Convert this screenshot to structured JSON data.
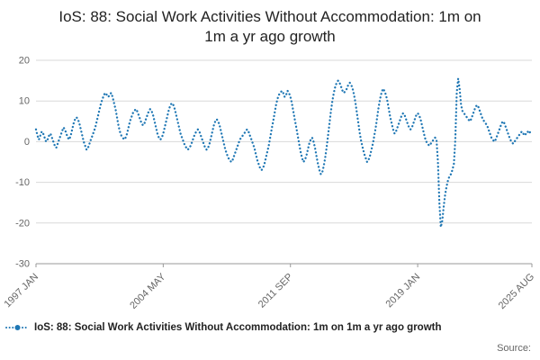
{
  "title": "IoS: 88: Social Work Activities Without Accommodation: 1m on 1m a yr ago growth",
  "legend": {
    "label": "IoS: 88: Social Work Activities Without Accommodation: 1m on 1m a yr ago growth"
  },
  "source_label": "Source:",
  "colors": {
    "series": "#1f77b4",
    "grid": "#d9d9d9",
    "axis": "#999999",
    "tick_text": "#666666",
    "title_text": "#222222"
  },
  "chart_data": {
    "type": "line",
    "line_style": "dotted",
    "title": "IoS: 88: Social Work Activities Without Accommodation: 1m on 1m a yr ago growth",
    "xlabel": "",
    "ylabel": "",
    "ylim": [
      -30,
      20
    ],
    "yticks": [
      20,
      10,
      0,
      -10,
      -20,
      -30
    ],
    "grid": true,
    "legend_position": "bottom-left",
    "x_start": "1997 JAN",
    "x_end": "2025 AUG",
    "x_frequency": "monthly",
    "xticks": [
      {
        "i": 0,
        "label": "1997 JAN"
      },
      {
        "i": 88,
        "label": "2004 MAY"
      },
      {
        "i": 176,
        "label": "2011 SEP"
      },
      {
        "i": 264,
        "label": "2019 JAN"
      },
      {
        "i": 343,
        "label": "2025 AUG"
      }
    ],
    "series": [
      {
        "name": "IoS: 88: Social Work Activities Without Accommodation: 1m on 1m a yr ago growth",
        "values": [
          3,
          1.5,
          0.5,
          1.5,
          2.5,
          2,
          1,
          0,
          0.5,
          1.5,
          2,
          1,
          0,
          -1,
          -1.5,
          -0.5,
          0.5,
          1.5,
          2.5,
          3.5,
          3,
          2,
          1,
          0.5,
          1.5,
          3,
          4.5,
          5.5,
          6,
          5.5,
          4.5,
          3,
          1.5,
          0,
          -1,
          -2,
          -1.5,
          -0.5,
          0.5,
          1.5,
          2.5,
          3.5,
          5,
          6.5,
          8,
          9.5,
          10.5,
          11.5,
          12,
          11.5,
          11,
          11.5,
          12,
          11,
          9.5,
          8,
          6,
          4,
          2.5,
          1.5,
          1,
          0.5,
          1,
          2,
          3.5,
          5,
          6,
          7,
          7.5,
          8,
          7.5,
          6.5,
          5.5,
          4.5,
          4,
          4.5,
          5.5,
          6.5,
          7.5,
          8,
          7.5,
          6.5,
          5,
          3.5,
          2,
          1,
          0.5,
          1,
          2,
          3.5,
          5,
          6.5,
          8,
          9,
          9.5,
          9,
          8,
          6.5,
          5,
          3.5,
          2,
          1,
          0,
          -1,
          -1.5,
          -2,
          -1.5,
          -1,
          0,
          1,
          2,
          2.5,
          3,
          2.5,
          1.5,
          0.5,
          -0.5,
          -1.5,
          -2,
          -1.5,
          -0.5,
          1,
          2.5,
          4,
          5,
          5.5,
          5,
          4,
          2.5,
          1,
          -0.5,
          -2,
          -3,
          -4,
          -4.5,
          -5,
          -4.5,
          -3.5,
          -2.5,
          -1.5,
          -0.5,
          0.5,
          1,
          1.5,
          2,
          2.5,
          3,
          2.5,
          1.5,
          0.5,
          -0.5,
          -1.5,
          -3,
          -4.5,
          -5.5,
          -6.5,
          -7,
          -6.5,
          -5.5,
          -4,
          -2.5,
          -1,
          1,
          3,
          5,
          7,
          9,
          10.5,
          11.5,
          12,
          12.5,
          12,
          11,
          11.5,
          12.5,
          12,
          11,
          9.5,
          7.5,
          5.5,
          3.5,
          1.5,
          -0.5,
          -2.5,
          -4,
          -5,
          -4.5,
          -3.5,
          -2,
          -0.5,
          0.5,
          1,
          0,
          -1.5,
          -3.5,
          -5.5,
          -7,
          -8,
          -7.5,
          -6,
          -4,
          -1.5,
          1.5,
          4.5,
          7.5,
          10,
          12,
          13.5,
          14.5,
          15,
          14.5,
          13.5,
          12.5,
          12,
          12.5,
          13,
          14,
          14.5,
          14,
          13,
          11.5,
          9.5,
          7,
          4.5,
          2,
          0,
          -1.5,
          -3,
          -4,
          -5,
          -4.5,
          -3.5,
          -2,
          -0.5,
          1.5,
          3.5,
          6,
          8.5,
          10.5,
          12,
          13,
          12.5,
          11.5,
          10,
          8,
          6,
          4.5,
          3,
          2,
          2.5,
          3.5,
          4.5,
          5.5,
          6.5,
          7,
          6.5,
          5.5,
          4.5,
          3.5,
          3,
          3.5,
          4.5,
          5.5,
          6.5,
          7,
          6.5,
          5.5,
          4,
          2.5,
          1,
          0,
          -0.5,
          -1,
          -0.5,
          0,
          0.5,
          1,
          0.5,
          -5,
          -15,
          -21,
          -19.5,
          -16,
          -13,
          -11,
          -9.5,
          -8.5,
          -8,
          -7,
          -5.5,
          0.5,
          12,
          15.5,
          13,
          9,
          7.5,
          7,
          6.5,
          6,
          5.5,
          5,
          5.5,
          6.5,
          7.5,
          8.5,
          9,
          8.5,
          7.5,
          6.5,
          5.5,
          5,
          4.5,
          4,
          3,
          2,
          1,
          0.5,
          0,
          0.5,
          1.5,
          2.5,
          3.5,
          4.5,
          5,
          4.5,
          3.5,
          2.5,
          1.5,
          0.5,
          0,
          -0.5,
          0,
          0.5,
          1,
          1.5,
          2,
          2.5,
          2,
          1.5,
          2,
          2.5,
          2,
          2.5,
          3
        ]
      }
    ]
  }
}
